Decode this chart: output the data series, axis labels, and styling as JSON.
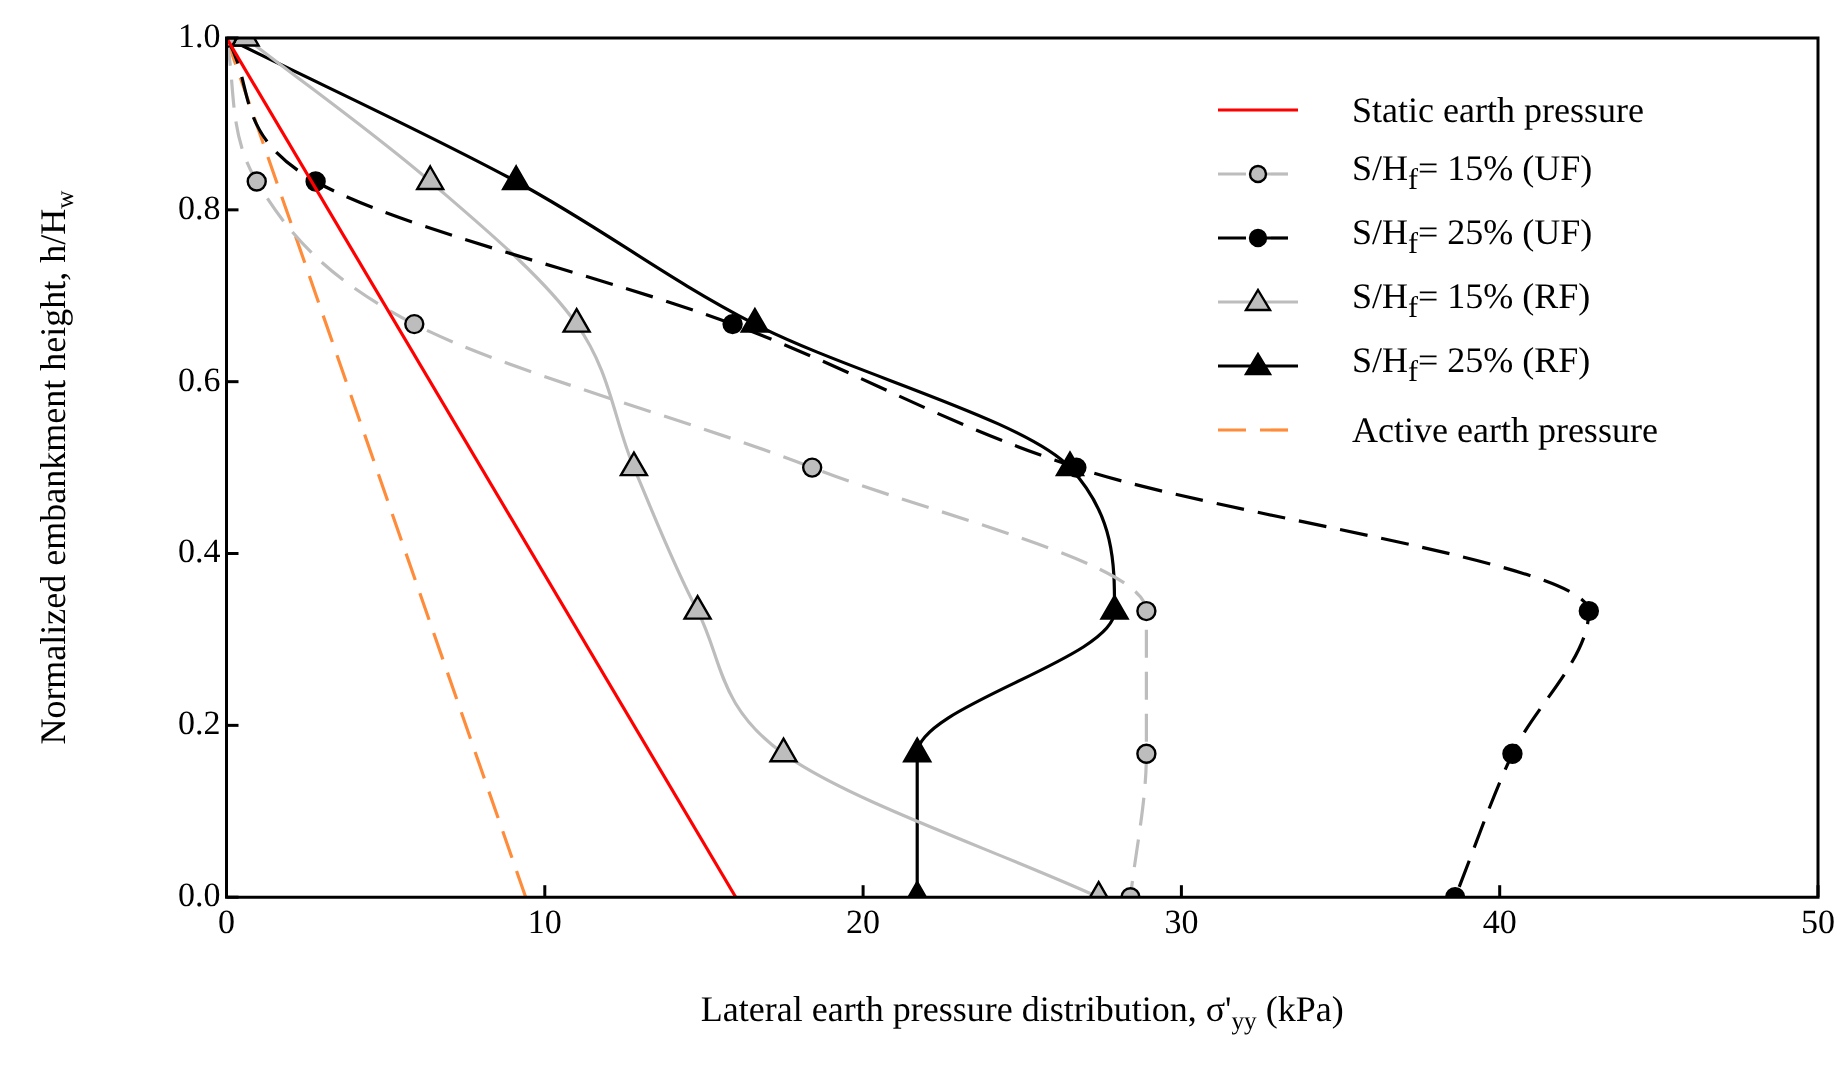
{
  "chart_data": {
    "type": "line",
    "xlabel": "Lateral earth pressure distribution, σ'$_{yy}$ (kPa)",
    "ylabel": "Normalized embankment height, h/H$_{w}$",
    "xlim": [
      0,
      50
    ],
    "xticks": [
      0,
      10,
      20,
      30,
      40,
      50
    ],
    "ylim": [
      0,
      1
    ],
    "yticks": [
      {
        "value": 0,
        "label": "0.0"
      },
      0.2,
      0.4,
      0.6,
      0.8,
      {
        "value": 1,
        "label": "1.0"
      }
    ],
    "grid": false,
    "legend": "top right",
    "series": [
      {
        "name": "Static earth pressure",
        "color": "#ff0000",
        "marker": "none",
        "line_style": "solid",
        "x": [
          0,
          16
        ],
        "values": [
          1,
          0
        ]
      },
      {
        "name": "S/H$_{f}$= 15% (UF)",
        "color": "#bdbdbd",
        "marker": "circle",
        "line_style": "dashed",
        "x": [
          0,
          0.95,
          5.9,
          18.4,
          28.9,
          28.9,
          28.4
        ],
        "values": [
          1,
          0.833,
          0.667,
          0.5,
          0.333,
          0.167,
          0
        ]
      },
      {
        "name": "S/H$_{f}$= 25% (UF)",
        "color": "#000000",
        "marker": "circle",
        "line_style": "dashed",
        "x": [
          0,
          2.8,
          15.9,
          26.7,
          42.8,
          40.4,
          38.6
        ],
        "values": [
          1,
          0.833,
          0.667,
          0.5,
          0.333,
          0.167,
          0
        ]
      },
      {
        "name": "S/H$_{f}$= 15% (RF)",
        "color": "#bdbdbd",
        "marker": "triangle",
        "line_style": "solid",
        "x": [
          0.6,
          6.4,
          11.0,
          12.8,
          14.8,
          17.5,
          27.4
        ],
        "values": [
          1,
          0.833,
          0.667,
          0.5,
          0.333,
          0.167,
          0
        ]
      },
      {
        "name": "S/H$_{f}$= 25% (RF)",
        "color": "#000000",
        "marker": "triangle",
        "line_style": "solid",
        "x": [
          0,
          9.1,
          16.6,
          26.5,
          27.9,
          21.7,
          21.7
        ],
        "values": [
          1,
          0.833,
          0.667,
          0.5,
          0.333,
          0.167,
          0
        ]
      },
      {
        "name": "Active earth pressure",
        "color": "#ff8c3a",
        "marker": "none",
        "line_style": "dashed",
        "x": [
          0,
          9.4
        ],
        "values": [
          1,
          0
        ]
      }
    ]
  }
}
